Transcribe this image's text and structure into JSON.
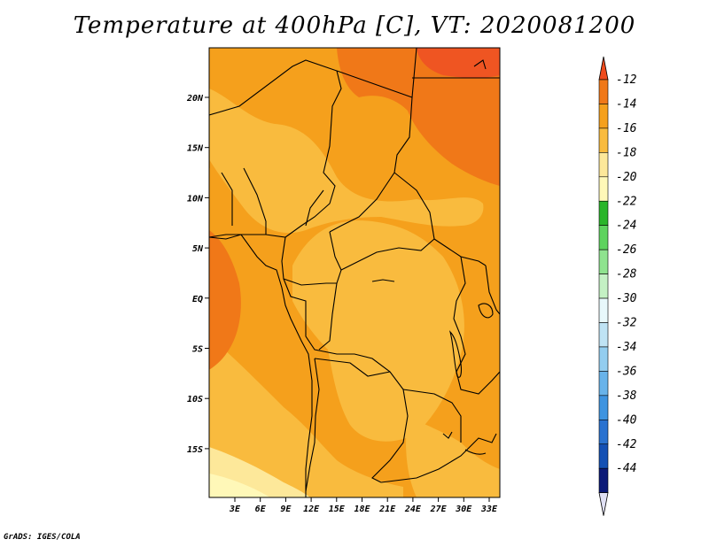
{
  "title": "Temperature at 400hPa [C], VT: 2020081200",
  "credit": "GrADS: IGES/COLA",
  "colors": {
    "c_lt_m20": "#fff8b8",
    "c_m20_m18": "#fde89a",
    "c_m18_m16": "#f9bb3e",
    "c_m16_m14": "#f5a01c",
    "c_m14_m12": "#f07818",
    "c_gt_m12": "#ef5522",
    "border": "#000000"
  },
  "map": {
    "lon_labels": [
      "3E",
      "6E",
      "9E",
      "12E",
      "15E",
      "18E",
      "21E",
      "24E",
      "27E",
      "30E",
      "33E"
    ],
    "lat_labels": [
      "20N",
      "15N",
      "10N",
      "5N",
      "EQ",
      "5S",
      "10S",
      "15S"
    ]
  },
  "colorbar": {
    "labels": [
      "-12",
      "-14",
      "-16",
      "-18",
      "-20",
      "-22",
      "-24",
      "-26",
      "-28",
      "-30",
      "-32",
      "-34",
      "-36",
      "-38",
      "-40",
      "-42",
      "-44"
    ],
    "top_color": "#ef4a1c",
    "segments": [
      "#f07818",
      "#f5a01c",
      "#f9bb3e",
      "#fde89a",
      "#fff8b8",
      "#2ab52a",
      "#5ed35e",
      "#8fe38f",
      "#c4f1c4",
      "#e8f8fb",
      "#bfe3f4",
      "#93cdef",
      "#68b3ea",
      "#3e94e0",
      "#2a72d0",
      "#1450b4",
      "#0c1a78"
    ],
    "bottom_color": "#e0e0f4"
  }
}
